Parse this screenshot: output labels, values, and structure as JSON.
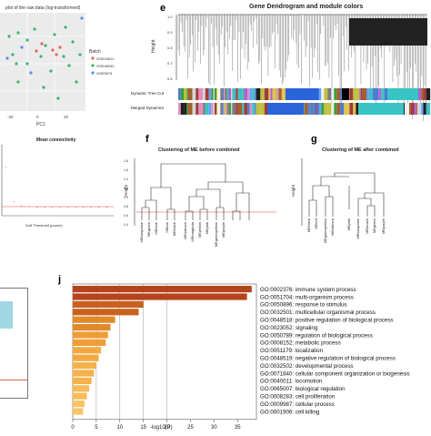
{
  "pca": {
    "title": "plot of the raw data (log-transformed)",
    "xlabel": "PC1",
    "legend_title": "Batch",
    "legend": [
      {
        "name": "GSE15511",
        "color": "#e8655a"
      },
      {
        "name": "GSE46030",
        "color": "#3cb371"
      },
      {
        "name": "GSE5575",
        "color": "#5b8def"
      }
    ],
    "xticks": [
      "-20",
      "0",
      "20"
    ],
    "yticks": []
  },
  "connectivity": {
    "title": "Mean connectivity",
    "xlabel": "Soft Threshold (power)"
  },
  "panel_e": {
    "letter": "e",
    "title": "Gene Dendrogram and module colors",
    "ylabel": "Height",
    "yticks": [
      "1.0",
      "0.9",
      "0.8",
      "0.7",
      "0.6"
    ],
    "row1": "Dynamic Tree Cut",
    "row2": "Merged Dynamics"
  },
  "panel_f": {
    "letter": "f",
    "title": "Clustering of ME before combined",
    "ylabel": "Height",
    "yticks": [
      "1.8",
      "1.6",
      "1.4",
      "1.2",
      "1.0",
      "0.8",
      "0.6",
      "0.4"
    ],
    "leaves": [
      "MEturquoise",
      "MEgreen",
      "MEblue",
      "MEtan",
      "MEblack",
      "MEsalmon",
      "MEmagenta",
      "MEyellow",
      "MEpink",
      "MEgreenyellow",
      "MEpurple"
    ]
  },
  "panel_g": {
    "letter": "g",
    "title": "Clustering of ME after combined",
    "ylabel": "Height",
    "leaves": [
      "MEblack",
      "MEred",
      "MEgreenyellow",
      "MEsalmon",
      "MEpink",
      "MEturquoise",
      "MEbrown",
      "MEgreen",
      "MEpurple"
    ]
  },
  "panel_j": {
    "letter": "j",
    "xlabel": "-log10(P)",
    "xticks": [
      "0",
      "5",
      "10",
      "15",
      "20",
      "25",
      "30",
      "35"
    ]
  },
  "chart_data": {
    "type": "bar",
    "orientation": "horizontal",
    "xlabel": "-log10(P)",
    "xlim": [
      0,
      39
    ],
    "categories": [
      "GO:0002376: immune system process",
      "GO:0051704: multi-organism process",
      "GO:0050896: response to stimulus",
      "GO:0032501: multicellular organismal process",
      "GO:0048518: positive regulation of biological process",
      "GO:0023052: signaling",
      "GO:0050789: regulation of biological process",
      "GO:0008152: metabolic process",
      "GO:0051179: localization",
      "GO:0048519: negative regulation of biological process",
      "GO:0032502: developmental process",
      "GO:0071840: cellular component organization or biogenesis",
      "GO:0040011: locomotion",
      "GO:0065007: biological regulation",
      "GO:0008283: cell proliferation",
      "GO:0009987: cellular process",
      "GO:0001906: cell killing"
    ],
    "values": [
      38,
      37,
      15,
      14,
      9,
      8,
      7.5,
      7,
      6,
      5.5,
      5,
      4.5,
      4,
      3.5,
      3,
      2.5,
      2.2
    ],
    "colors": [
      "#b5441c",
      "#b5441c",
      "#c8611f",
      "#c8611f",
      "#e08a2c",
      "#e08a2c",
      "#f09d38",
      "#f09d38",
      "#f4a940",
      "#f4a940",
      "#f6b24a",
      "#f6b24a",
      "#f6b24a",
      "#f7bb58",
      "#f7bb58",
      "#f8c468",
      "#f8c468"
    ]
  }
}
